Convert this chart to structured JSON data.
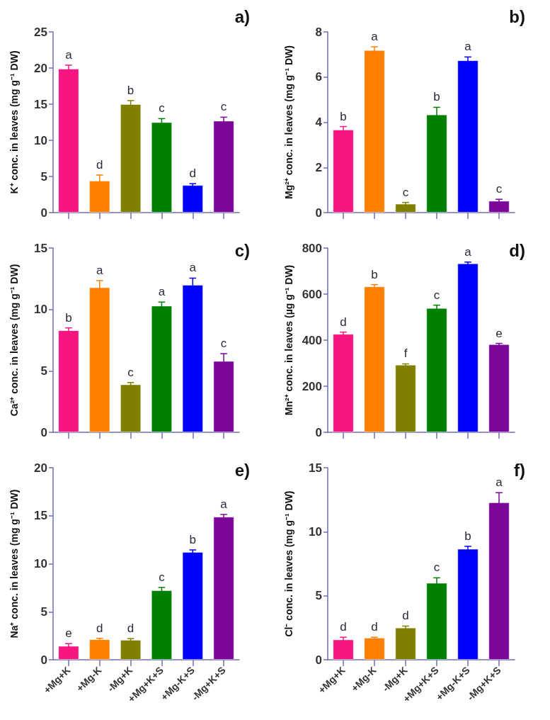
{
  "chart_data": [
    {
      "type": "bar",
      "title": "a)",
      "ylabel": "K⁺ conc. in leaves (mg g⁻¹ DW)",
      "categories": [
        null,
        null,
        null,
        null,
        null,
        null
      ],
      "tick_labels": "y",
      "ylim": [
        0,
        25
      ],
      "yticks": [
        0,
        5,
        10,
        15,
        20,
        25
      ],
      "values": [
        19.9,
        4.4,
        15.0,
        12.5,
        3.8,
        12.7
      ],
      "errors": [
        0.5,
        0.8,
        0.5,
        0.5,
        0.2,
        0.5
      ],
      "value_labels": [
        "a",
        "d",
        "b",
        "c",
        "d",
        "c"
      ],
      "colors": [
        "#f7157f",
        "#ff8000",
        "#808000",
        "#008000",
        "#0000ff",
        "#7b0699"
      ]
    },
    {
      "type": "bar",
      "title": "b)",
      "ylabel": "Mg²⁺ conc. in leaves (mg g⁻¹ DW)",
      "categories": [
        null,
        null,
        null,
        null,
        null,
        null
      ],
      "tick_labels": "y",
      "ylim": [
        0,
        8
      ],
      "yticks": [
        0,
        2,
        4,
        6,
        8
      ],
      "values": [
        3.67,
        7.19,
        0.39,
        4.34,
        6.74,
        0.52
      ],
      "errors": [
        0.14,
        0.15,
        0.06,
        0.32,
        0.15,
        0.07
      ],
      "value_labels": [
        "b",
        "a",
        "c",
        "b",
        "a",
        "c"
      ],
      "colors": [
        "#f7157f",
        "#ff8000",
        "#808000",
        "#008000",
        "#0000ff",
        "#7b0699"
      ]
    },
    {
      "type": "bar",
      "title": "c)",
      "ylabel": "Ca²⁺ conc. in leaves (mg g⁻¹ DW)",
      "categories": [
        null,
        null,
        null,
        null,
        null,
        null
      ],
      "tick_labels": "y",
      "ylim": [
        0,
        15
      ],
      "yticks": [
        0,
        5,
        10,
        15
      ],
      "values": [
        8.3,
        11.8,
        3.9,
        10.3,
        12.0,
        5.8
      ],
      "errors": [
        0.2,
        0.55,
        0.15,
        0.3,
        0.55,
        0.6
      ],
      "value_labels": [
        "b",
        "a",
        "c",
        "a",
        "a",
        "c"
      ],
      "colors": [
        "#f7157f",
        "#ff8000",
        "#808000",
        "#008000",
        "#0000ff",
        "#7b0699"
      ]
    },
    {
      "type": "bar",
      "title": "d)",
      "ylabel": "Mn²⁺ conc. in leaves (µg g⁻¹ DW)",
      "categories": [
        null,
        null,
        null,
        null,
        null,
        null
      ],
      "tick_labels": "y",
      "ylim": [
        0,
        800
      ],
      "yticks": [
        0,
        200,
        400,
        600,
        800
      ],
      "values": [
        427,
        633,
        293,
        539,
        733,
        382
      ],
      "errors": [
        8,
        8,
        4,
        13,
        6,
        4
      ],
      "value_labels": [
        "d",
        "b",
        "f",
        "c",
        "a",
        "e"
      ],
      "colors": [
        "#f7157f",
        "#ff8000",
        "#808000",
        "#008000",
        "#0000ff",
        "#7b0699"
      ]
    },
    {
      "type": "bar",
      "title": "e)",
      "ylabel": "Na⁺ conc. in leaves (mg g⁻¹ DW)",
      "categories": [
        "+Mg+K",
        "+Mg-K",
        "-Mg+K",
        "+Mg+K+S",
        "+Mg-K+S",
        "-Mg+K+S"
      ],
      "ylim": [
        0,
        20
      ],
      "yticks": [
        0,
        5,
        10,
        15,
        20
      ],
      "values": [
        1.44,
        2.13,
        2.07,
        7.23,
        11.22,
        14.89
      ],
      "errors": [
        0.24,
        0.1,
        0.13,
        0.3,
        0.22,
        0.24
      ],
      "value_labels": [
        "e",
        "d",
        "d",
        "c",
        "b",
        "a"
      ],
      "colors": [
        "#f7157f",
        "#ff8000",
        "#808000",
        "#008000",
        "#0000ff",
        "#7b0699"
      ]
    },
    {
      "type": "bar",
      "title": "f)",
      "ylabel": "Cl⁻ conc. in leaves (mg g⁻¹ DW)",
      "categories": [
        "+Mg+K",
        "+Mg-K",
        "-Mg+K",
        "+Mg+K+S",
        "+Mg-K+S",
        "-Mg+K+S"
      ],
      "ylim": [
        0,
        15
      ],
      "yticks": [
        0,
        5,
        10,
        15
      ],
      "values": [
        1.58,
        1.72,
        2.51,
        6.0,
        8.66,
        12.29
      ],
      "errors": [
        0.18,
        0.04,
        0.12,
        0.4,
        0.2,
        0.76
      ],
      "value_labels": [
        "d",
        "d",
        "d",
        "c",
        "b",
        "a"
      ],
      "colors": [
        "#f7157f",
        "#ff8000",
        "#808000",
        "#008000",
        "#0000ff",
        "#7b0699"
      ]
    }
  ]
}
